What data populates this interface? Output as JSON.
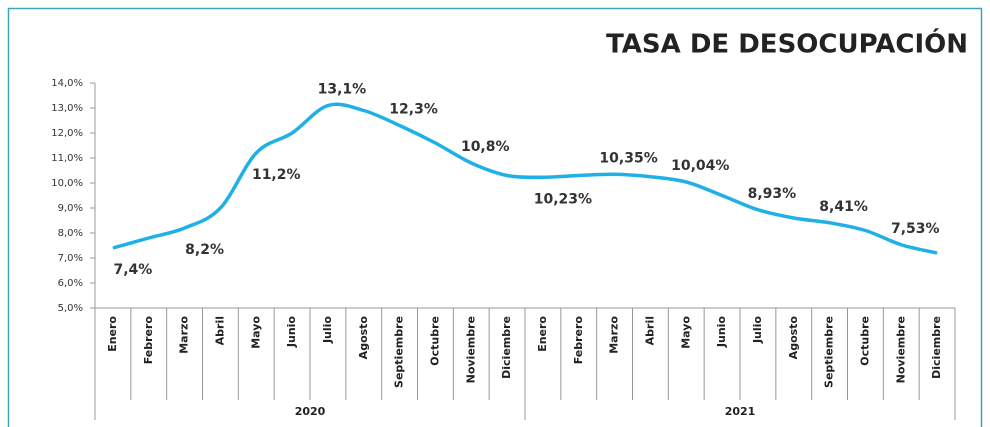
{
  "chart_data": {
    "type": "line",
    "title": "TASA DE DESOCUPACIÓN",
    "categories": [
      "Enero",
      "Febrero",
      "Marzo",
      "Abril",
      "Mayo",
      "Junio",
      "Julio",
      "Agosto",
      "Septiembre",
      "Octubre",
      "Noviembre",
      "Diciembre",
      "Enero",
      "Febrero",
      "Marzo",
      "Abril",
      "Mayo",
      "Junio",
      "Julio",
      "Agosto",
      "Septiembre",
      "Octubre",
      "Noviembre",
      "Diciembre"
    ],
    "groups": [
      {
        "name": "2020",
        "size": 12
      },
      {
        "name": "2021",
        "size": 12
      }
    ],
    "series": [
      {
        "name": "Tasa de desocupación",
        "color": "#1fb1e6",
        "values": [
          7.4,
          7.8,
          8.2,
          9.0,
          11.2,
          12.0,
          13.1,
          12.9,
          12.3,
          11.6,
          10.8,
          10.3,
          10.23,
          10.3,
          10.35,
          10.25,
          10.04,
          9.5,
          8.93,
          8.6,
          8.41,
          8.1,
          7.53,
          7.2
        ],
        "value_labels": [
          "7,4%",
          null,
          "8,2%",
          null,
          "11,2%",
          null,
          "13,1%",
          null,
          "12,3%",
          null,
          "10,8%",
          null,
          "10,23%",
          null,
          "10,35%",
          null,
          "10,04%",
          null,
          "8,93%",
          null,
          "8,41%",
          null,
          "7,53%",
          null
        ]
      }
    ],
    "ylim": [
      5,
      14
    ],
    "yticks": [
      {
        "value": 5,
        "label": "5,0%"
      },
      {
        "value": 6,
        "label": "6,0%"
      },
      {
        "value": 7,
        "label": "7,0%"
      },
      {
        "value": 8,
        "label": "8,0%"
      },
      {
        "value": 9,
        "label": "9,0%"
      },
      {
        "value": 10,
        "label": "10,0%"
      },
      {
        "value": 11,
        "label": "11,0%"
      },
      {
        "value": 12,
        "label": "12,0%"
      },
      {
        "value": 13,
        "label": "13,0%"
      },
      {
        "value": 14,
        "label": "14,0%"
      }
    ]
  }
}
